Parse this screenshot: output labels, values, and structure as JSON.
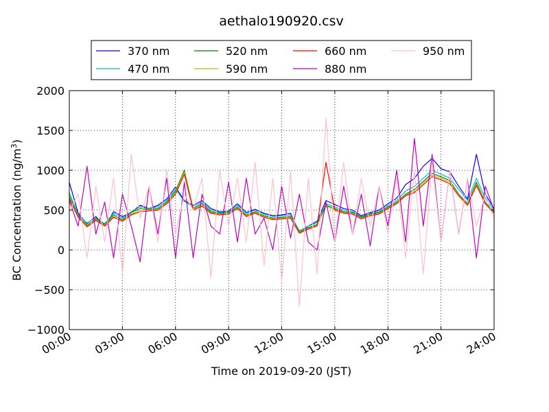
{
  "chart_data": {
    "type": "line",
    "title": "aethalo190920.csv",
    "xlabel": "Time on 2019-09-20 (JST)",
    "ylabel": "BC Concentration (ng/m³)",
    "ylabel_parts": {
      "text": "BC Concentration (ng/m",
      "superscript": "3",
      "suffix": ")"
    },
    "xlim": [
      "00:00",
      "24:00"
    ],
    "ylim": [
      -1000,
      2000
    ],
    "x_ticks": [
      "00:00",
      "03:00",
      "06:00",
      "09:00",
      "12:00",
      "15:00",
      "18:00",
      "21:00",
      "24:00"
    ],
    "y_ticks": [
      "-1000",
      "-500",
      "0",
      "500",
      "1000",
      "1500",
      "2000"
    ],
    "grid": true,
    "legend_position": "top",
    "x_hours": [
      0,
      0.5,
      1,
      1.5,
      2,
      2.5,
      3,
      3.5,
      4,
      4.5,
      5,
      5.5,
      6,
      6.5,
      7,
      7.5,
      8,
      8.5,
      9,
      9.5,
      10,
      10.5,
      11,
      11.5,
      12,
      12.5,
      13,
      13.5,
      14,
      14.5,
      15,
      15.5,
      16,
      16.5,
      17,
      17.5,
      18,
      18.5,
      19,
      19.5,
      20,
      20.5,
      21,
      21.5,
      22,
      22.5,
      23,
      23.5,
      24
    ],
    "series": [
      {
        "name": "370 nm",
        "color": "#0000ff",
        "values": [
          850,
          460,
          330,
          420,
          300,
          480,
          420,
          470,
          560,
          520,
          560,
          640,
          790,
          620,
          560,
          620,
          520,
          480,
          490,
          580,
          470,
          510,
          460,
          430,
          440,
          460,
          210,
          300,
          360,
          620,
          570,
          520,
          500,
          430,
          470,
          500,
          580,
          650,
          820,
          900,
          1050,
          1150,
          1020,
          980,
          800,
          640,
          1200,
          700,
          520
        ]
      },
      {
        "name": "470 nm",
        "color": "#00bfbf",
        "values": [
          720,
          440,
          340,
          400,
          330,
          460,
          400,
          480,
          540,
          520,
          540,
          620,
          760,
          610,
          540,
          600,
          500,
          470,
          480,
          560,
          460,
          500,
          450,
          420,
          430,
          440,
          240,
          300,
          340,
          580,
          540,
          500,
          480,
          420,
          460,
          480,
          560,
          620,
          740,
          800,
          900,
          1000,
          950,
          900,
          760,
          620,
          900,
          650,
          500
        ]
      },
      {
        "name": "520 nm",
        "color": "#008000",
        "values": [
          680,
          430,
          310,
          390,
          320,
          440,
          380,
          470,
          520,
          510,
          520,
          600,
          740,
          1000,
          520,
          580,
          480,
          460,
          470,
          540,
          440,
          480,
          430,
          400,
          410,
          420,
          230,
          280,
          320,
          560,
          520,
          480,
          470,
          410,
          450,
          470,
          540,
          600,
          700,
          760,
          860,
          960,
          920,
          870,
          700,
          580,
          850,
          600,
          480
        ]
      },
      {
        "name": "590 nm",
        "color": "#bfbf00",
        "values": [
          660,
          420,
          300,
          380,
          310,
          420,
          370,
          450,
          500,
          500,
          510,
          590,
          720,
          980,
          510,
          560,
          470,
          450,
          460,
          530,
          430,
          470,
          420,
          390,
          400,
          410,
          220,
          270,
          310,
          540,
          510,
          470,
          460,
          400,
          440,
          460,
          530,
          590,
          690,
          740,
          840,
          940,
          900,
          850,
          690,
          570,
          830,
          590,
          470
        ]
      },
      {
        "name": "660 nm",
        "color": "#ff0000",
        "values": [
          640,
          410,
          290,
          370,
          300,
          410,
          360,
          440,
          480,
          490,
          500,
          580,
          700,
          950,
          500,
          550,
          460,
          440,
          450,
          520,
          420,
          460,
          410,
          380,
          390,
          400,
          210,
          260,
          300,
          1100,
          500,
          460,
          450,
          390,
          430,
          450,
          520,
          580,
          680,
          720,
          820,
          920,
          880,
          830,
          680,
          560,
          810,
          580,
          460
        ]
      },
      {
        "name": "880 nm",
        "color": "#bf00bf",
        "values": [
          620,
          300,
          1050,
          200,
          600,
          -100,
          700,
          300,
          -150,
          800,
          200,
          900,
          -100,
          850,
          -100,
          700,
          300,
          200,
          850,
          100,
          900,
          200,
          400,
          0,
          800,
          150,
          700,
          100,
          0,
          600,
          100,
          800,
          200,
          700,
          50,
          800,
          300,
          1000,
          100,
          1400,
          300,
          1200,
          100,
          1000,
          200,
          900,
          -100,
          800,
          500
        ]
      },
      {
        "name": "950 nm",
        "color": "#ffc0cb",
        "values": [
          480,
          700,
          -100,
          800,
          100,
          900,
          -300,
          1200,
          400,
          800,
          100,
          1000,
          200,
          700,
          500,
          900,
          -350,
          1000,
          300,
          900,
          100,
          1100,
          -200,
          900,
          -400,
          1000,
          -700,
          900,
          -300,
          1650,
          100,
          1100,
          200,
          900,
          300,
          800,
          200,
          900,
          -100,
          1000,
          -300,
          1100,
          100,
          1000,
          200,
          900,
          300,
          700,
          400
        ]
      }
    ]
  }
}
